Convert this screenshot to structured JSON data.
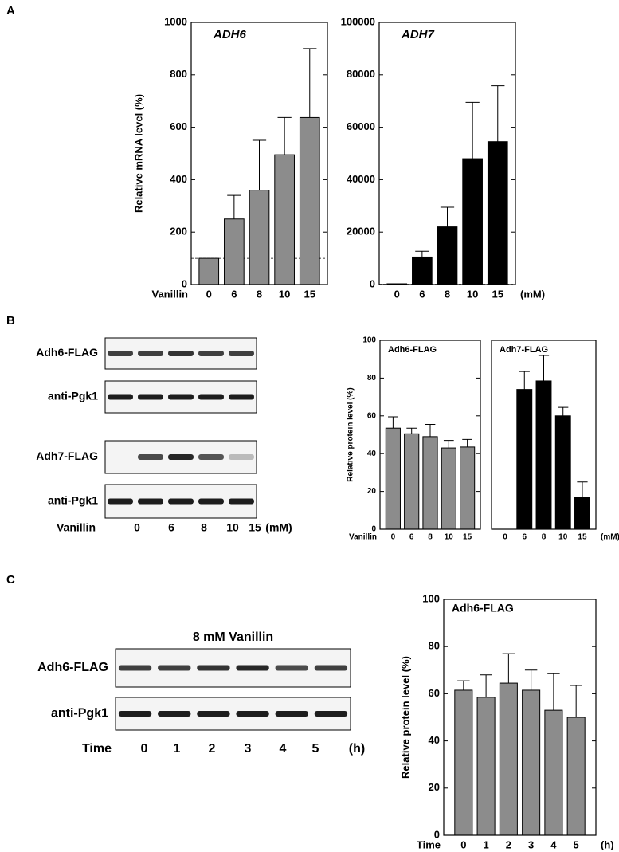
{
  "panel_labels": [
    "A",
    "B",
    "C"
  ],
  "blots": [
    {
      "rows": [
        "Adh6-FLAG",
        "anti-Pgk1",
        "Adh7-FLAG",
        "anti-Pgk1"
      ],
      "lane_label": "Vanillin",
      "lanes": [
        "0",
        "6",
        "8",
        "10",
        "15"
      ],
      "unit": "(mM)"
    },
    {
      "title": "8 mM Vanillin",
      "rows": [
        "Adh6-FLAG",
        "anti-Pgk1"
      ],
      "lane_label": "Time",
      "lanes": [
        "0",
        "1",
        "2",
        "3",
        "4",
        "5"
      ],
      "unit": "(h)"
    }
  ],
  "chart_data": [
    {
      "type": "bar",
      "title": "ADH6",
      "title_italic": true,
      "y_label": "Relative mRNA level (%)",
      "x_row_label": "Vanillin",
      "categories": [
        "0",
        "6",
        "8",
        "10",
        "15"
      ],
      "values": [
        100,
        250,
        360,
        495,
        637
      ],
      "errors": [
        null,
        90,
        190,
        142,
        263
      ],
      "color": "#8c8c8c",
      "ylim": [
        0,
        1000
      ],
      "yticks": [
        0,
        200,
        400,
        600,
        800,
        1000
      ],
      "reference_line": 100
    },
    {
      "type": "bar",
      "title": "ADH7",
      "title_italic": true,
      "x_unit": "(mM)",
      "categories": [
        "0",
        "6",
        "8",
        "10",
        "15"
      ],
      "values": [
        300,
        10500,
        22000,
        48000,
        54500
      ],
      "errors": [
        null,
        2200,
        7500,
        21500,
        21300
      ],
      "color": "#000000",
      "ylim": [
        0,
        100000
      ],
      "yticks": [
        0,
        20000,
        40000,
        60000,
        80000,
        100000
      ],
      "reference_line": 100
    },
    {
      "type": "bar",
      "title": "Adh6-FLAG",
      "title_italic": false,
      "y_label": "Relative protein level (%)",
      "x_row_label": "Vanillin",
      "categories": [
        "0",
        "6",
        "8",
        "10",
        "15"
      ],
      "values": [
        53.5,
        50.5,
        49,
        43,
        43.5
      ],
      "errors": [
        6,
        3,
        6.5,
        4,
        4
      ],
      "color": "#8c8c8c",
      "ylim": [
        0,
        100
      ],
      "yticks": [
        0,
        20,
        40,
        60,
        80,
        100
      ]
    },
    {
      "type": "bar",
      "title": "Adh7-FLAG",
      "title_italic": false,
      "x_unit": "(mM)",
      "categories": [
        "0",
        "6",
        "8",
        "10",
        "15"
      ],
      "values": [
        0,
        74,
        78.5,
        60,
        17
      ],
      "errors": [
        null,
        9.5,
        13.5,
        4.5,
        8
      ],
      "color": "#000000",
      "ylim": [
        0,
        100
      ]
    },
    {
      "type": "bar",
      "title": "Adh6-FLAG",
      "title_italic": false,
      "y_label": "Relative protein level (%)",
      "x_row_label": "Time",
      "x_unit": "(h)",
      "categories": [
        "0",
        "1",
        "2",
        "3",
        "4",
        "5"
      ],
      "values": [
        61.5,
        58.5,
        64.5,
        61.5,
        53,
        50
      ],
      "errors": [
        4,
        9.5,
        12.5,
        8.5,
        15.5,
        13.5
      ],
      "color": "#8c8c8c",
      "ylim": [
        0,
        100
      ],
      "yticks": [
        0,
        20,
        40,
        60,
        80,
        100
      ]
    }
  ]
}
